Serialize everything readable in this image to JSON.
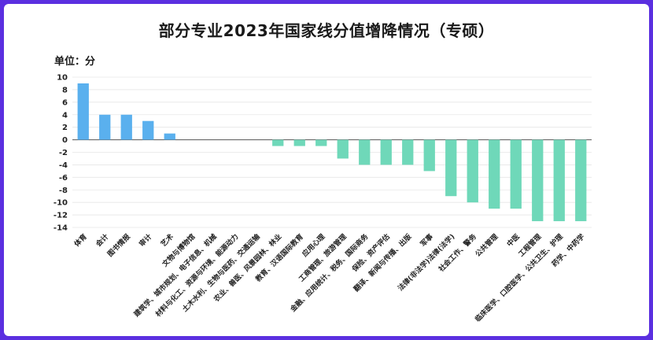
{
  "chart_data": {
    "type": "bar",
    "title": "部分专业2023年国家线分值增降情况（专硕）",
    "unit_label": "单位：分",
    "xlabel": "",
    "ylabel": "",
    "ylim": [
      -14,
      10
    ],
    "yticks": [
      10,
      8,
      6,
      4,
      2,
      0,
      -2,
      -4,
      -6,
      -8,
      -10,
      -12,
      -14
    ],
    "grid": true,
    "positive_color": "#5ab0ee",
    "negative_color": "#6fd8b9",
    "categories": [
      "体育",
      "会计",
      "图书情报",
      "审计",
      "艺术",
      "文物与博物馆",
      "建筑学、城市规划、电子信息、机械",
      "材料与化工、资源与环境、能源动力",
      "土木水利、生物与医药、交通运输",
      "农业、兽医、风景园林、林业",
      "教育、汉语国际教育",
      "应用心理",
      "工商管理、旅游管理",
      "金融、应用统计、税务、国际商务",
      "保险、资产评估",
      "翻译、新闻与传播、出版",
      "军事",
      "法律(非法学)法律(法学)",
      "社会工作、警务",
      "公共管理",
      "中医",
      "工程管理",
      "临床医学、口腔医学、公共卫生、护理",
      "药学、中药学"
    ],
    "values": [
      9,
      4,
      4,
      3,
      1,
      0,
      0,
      0,
      0,
      -1,
      -1,
      -1,
      -3,
      -4,
      -4,
      -4,
      -5,
      -9,
      -10,
      -11,
      -11,
      -13,
      -13,
      -13
    ]
  }
}
